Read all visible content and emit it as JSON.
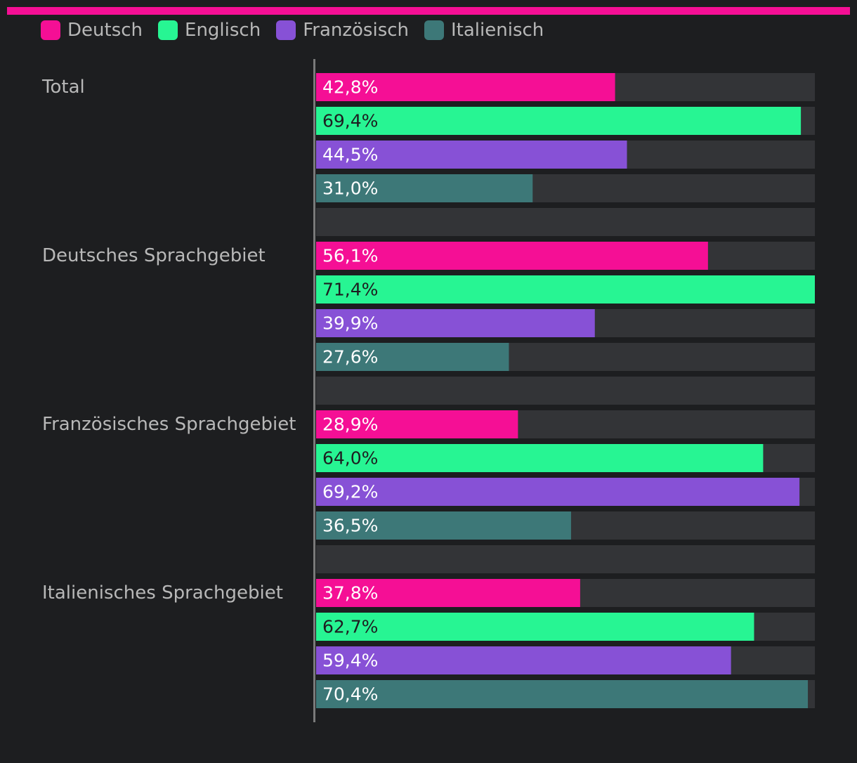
{
  "colors": {
    "background": "#1d1e20",
    "track": "#333437",
    "axis": "#7a7a7a",
    "top_bar": "#f50f95",
    "text": "#b8b8b8"
  },
  "chart_data": {
    "type": "bar",
    "orientation": "horizontal",
    "grouped": true,
    "categories": [
      "Total",
      "Deutsches Sprachgebiet",
      "Französisches Sprachgebiet",
      "Italienisches Sprachgebiet"
    ],
    "series": [
      {
        "name": "Deutsch",
        "color": "#f50f95",
        "label_color": "#ffffff",
        "values": [
          42.8,
          56.1,
          28.9,
          37.8
        ],
        "labels": [
          "42,8%",
          "56,1%",
          "28,9%",
          "37,8%"
        ]
      },
      {
        "name": "Englisch",
        "color": "#27f593",
        "label_color": "#1d1e20",
        "values": [
          69.4,
          71.4,
          64.0,
          62.7
        ],
        "labels": [
          "69,4%",
          "71,4%",
          "64,0%",
          "62,7%"
        ]
      },
      {
        "name": "Französisch",
        "color": "#8751d6",
        "label_color": "#ffffff",
        "values": [
          44.5,
          39.9,
          69.2,
          59.4
        ],
        "labels": [
          "44,5%",
          "39,9%",
          "69,2%",
          "59,4%"
        ]
      },
      {
        "name": "Italienisch",
        "color": "#3d7878",
        "label_color": "#ffffff",
        "values": [
          31.0,
          27.6,
          36.5,
          70.4
        ],
        "labels": [
          "31,0%",
          "27,6%",
          "36,5%",
          "70,4%"
        ]
      }
    ],
    "xlim": [
      0,
      71.4
    ],
    "legend_position": "top-left",
    "grid": false
  }
}
